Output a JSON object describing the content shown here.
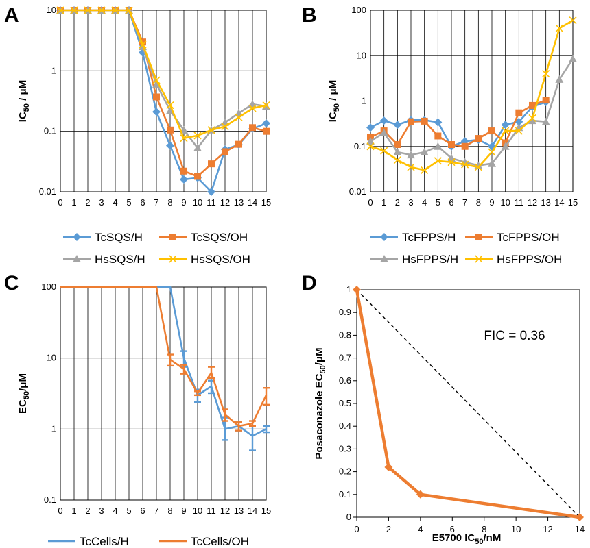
{
  "chart_data": [
    {
      "panel": "A",
      "type": "line",
      "ylabel": "IC",
      "ylabel_sub": "50",
      "ylabel_unit": " / μM",
      "xlabel": "",
      "yscale": "log",
      "ylim": [
        0.01,
        10
      ],
      "xlim": [
        0,
        15
      ],
      "yticks": [
        "0.01",
        "0.1",
        "1",
        "10"
      ],
      "x": [
        0,
        1,
        2,
        3,
        4,
        5,
        6,
        7,
        8,
        9,
        10,
        11,
        12,
        13,
        14,
        15
      ],
      "grid": true,
      "legend_placement": "bottom",
      "series": [
        {
          "name": "TcSQS/H",
          "color": "#5b9bd5",
          "marker": "diamond",
          "values": [
            10,
            10,
            10,
            10,
            10,
            10,
            2.0,
            0.21,
            0.058,
            0.016,
            0.017,
            0.01,
            0.05,
            0.06,
            0.11,
            0.135
          ]
        },
        {
          "name": "TcSQS/OH",
          "color": "#ed7d31",
          "marker": "square",
          "values": [
            10,
            10,
            10,
            10,
            10,
            10,
            3.0,
            0.37,
            0.105,
            0.022,
            0.018,
            0.029,
            0.046,
            0.061,
            0.115,
            0.1
          ]
        },
        {
          "name": "HsSQS/H",
          "color": "#a5a5a5",
          "marker": "triangle",
          "values": [
            10,
            10,
            10,
            10,
            10,
            10,
            2.5,
            0.6,
            0.22,
            0.105,
            0.053,
            0.105,
            0.14,
            0.2,
            0.28,
            0.26
          ]
        },
        {
          "name": "HsSQS/OH",
          "color": "#ffc000",
          "marker": "x",
          "values": [
            10,
            10,
            10,
            10,
            10,
            10,
            2.7,
            0.7,
            0.27,
            0.077,
            0.085,
            0.105,
            0.12,
            0.17,
            0.24,
            0.27
          ]
        }
      ]
    },
    {
      "panel": "B",
      "type": "line",
      "ylabel": "IC",
      "ylabel_sub": "50",
      "ylabel_unit": " / μM",
      "xlabel": "",
      "yscale": "log",
      "ylim": [
        0.01,
        100
      ],
      "xlim": [
        0,
        15
      ],
      "yticks": [
        "0.01",
        "0.1",
        "1",
        "10",
        "100"
      ],
      "x": [
        0,
        1,
        2,
        3,
        4,
        5,
        6,
        7,
        8,
        9,
        10,
        11,
        12,
        13,
        14,
        15
      ],
      "grid": true,
      "legend_placement": "bottom",
      "series": [
        {
          "name": "TcFPPS/H",
          "color": "#5b9bd5",
          "marker": "diamond",
          "values": [
            0.26,
            0.37,
            0.3,
            0.38,
            0.38,
            0.34,
            0.1,
            0.13,
            0.14,
            0.1,
            0.3,
            0.35,
            0.75,
            0.95,
            null,
            null
          ]
        },
        {
          "name": "TcFPPS/OH",
          "color": "#ed7d31",
          "marker": "square",
          "values": [
            0.16,
            0.22,
            0.11,
            0.35,
            0.36,
            0.17,
            0.11,
            0.1,
            0.15,
            0.22,
            0.12,
            0.55,
            0.8,
            1.05,
            null,
            null
          ]
        },
        {
          "name": "HsFPPS/H",
          "color": "#a5a5a5",
          "marker": "triangle",
          "values": [
            0.13,
            0.2,
            0.075,
            0.065,
            0.075,
            0.1,
            0.055,
            0.045,
            0.038,
            0.042,
            0.1,
            0.26,
            0.37,
            0.35,
            3.0,
            8.5
          ]
        },
        {
          "name": "HsFPPS/OH",
          "color": "#ffc000",
          "marker": "x",
          "values": [
            0.1,
            0.08,
            0.05,
            0.035,
            0.03,
            0.048,
            0.045,
            0.04,
            0.035,
            0.075,
            0.22,
            0.22,
            0.42,
            4.0,
            40,
            60
          ]
        }
      ]
    },
    {
      "panel": "C",
      "type": "line",
      "ylabel": "EC",
      "ylabel_sub": "50",
      "ylabel_unit": "/μM",
      "xlabel": "",
      "yscale": "log",
      "ylim": [
        0.1,
        100
      ],
      "xlim": [
        0,
        15
      ],
      "yticks": [
        "0.1",
        "1",
        "10",
        "100"
      ],
      "x": [
        0,
        1,
        2,
        3,
        4,
        5,
        6,
        7,
        8,
        9,
        10,
        11,
        12,
        13,
        14,
        15
      ],
      "grid": true,
      "error_bars": true,
      "legend_placement": "bottom",
      "series": [
        {
          "name": "TcCells/H",
          "color": "#5b9bd5",
          "values": [
            100,
            100,
            100,
            100,
            100,
            100,
            100,
            100,
            100,
            10,
            3.0,
            4.0,
            1.0,
            1.1,
            0.8,
            1.0
          ],
          "err_low": [
            null,
            null,
            null,
            null,
            null,
            null,
            null,
            null,
            null,
            7.5,
            2.4,
            3.2,
            0.7,
            0.95,
            0.5,
            0.9
          ],
          "err_high": [
            null,
            null,
            null,
            null,
            null,
            null,
            null,
            null,
            null,
            12.5,
            3.6,
            4.8,
            1.45,
            1.25,
            1.1,
            1.1
          ]
        },
        {
          "name": "TcCells/OH",
          "color": "#ed7d31",
          "values": [
            100,
            100,
            100,
            100,
            100,
            100,
            100,
            100,
            9.5,
            7.0,
            3.2,
            6.2,
            1.6,
            1.1,
            1.2,
            3.0
          ],
          "err_low": [
            null,
            null,
            null,
            null,
            null,
            null,
            null,
            null,
            7.8,
            6.0,
            3.0,
            5.2,
            1.3,
            0.95,
            1.1,
            2.2
          ],
          "err_high": [
            null,
            null,
            null,
            null,
            null,
            null,
            null,
            null,
            11.2,
            8.0,
            3.4,
            7.5,
            1.9,
            1.25,
            1.3,
            3.8
          ]
        }
      ]
    },
    {
      "panel": "D",
      "type": "line",
      "xlabel": "E5700 IC",
      "xlabel_sub": "50",
      "xlabel_unit": "/nM",
      "ylabel": "Posaconazole EC",
      "ylabel_sub": "50",
      "ylabel_unit": "/μM",
      "xlim": [
        0,
        14
      ],
      "ylim": [
        0,
        1
      ],
      "xticks": [
        "0",
        "2",
        "4",
        "6",
        "8",
        "10",
        "12",
        "14"
      ],
      "yticks": [
        "0",
        "0.1",
        "0.2",
        "0.3",
        "0.4",
        "0.5",
        "0.6",
        "0.7",
        "0.8",
        "0.9",
        "1"
      ],
      "grid": false,
      "annotation": "FIC = 0.36",
      "series": [
        {
          "color": "#ed7d31",
          "marker": "diamond",
          "x": [
            0,
            2,
            4,
            14
          ],
          "values": [
            1.0,
            0.22,
            0.1,
            0.0
          ]
        }
      ],
      "reference_line": {
        "style": "dashed",
        "color": "#000000",
        "x": [
          0,
          14
        ],
        "values": [
          1,
          0
        ]
      }
    }
  ]
}
